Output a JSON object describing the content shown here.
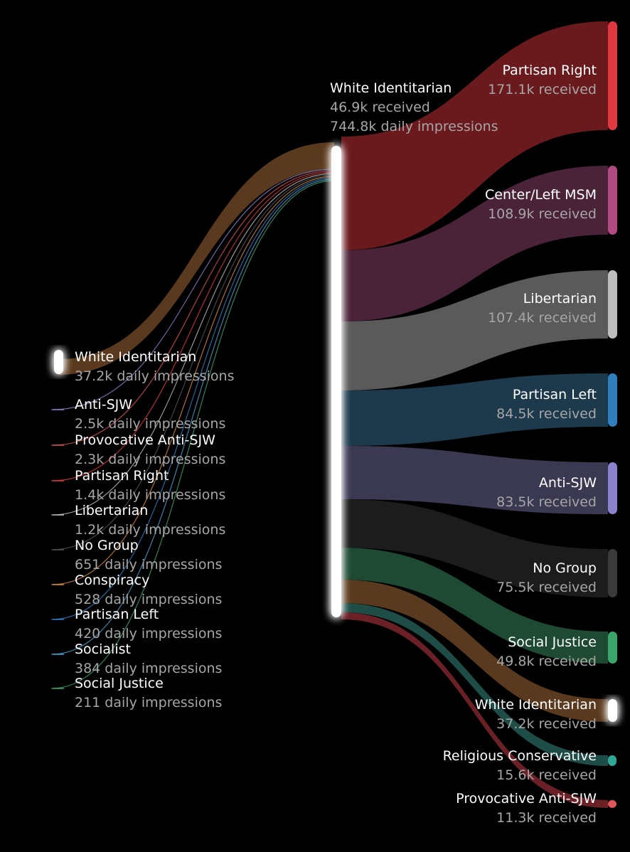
{
  "center": {
    "name": "White Identitarian",
    "received_value": "46.9k",
    "received_suffix": "received",
    "impressions_value": "744.8k",
    "impressions_suffix": "daily impressions"
  },
  "sources": [
    {
      "name": "White Identitarian",
      "value": "37.2k",
      "suffix": "daily impressions",
      "color": "#ffffff"
    },
    {
      "name": "Anti-SJW",
      "value": "2.5k",
      "suffix": "daily impressions",
      "color": "#8a82cc"
    },
    {
      "name": "Provocative Anti-SJW",
      "value": "2.3k",
      "suffix": "daily impressions",
      "color": "#d9534f"
    },
    {
      "name": "Partisan Right",
      "value": "1.4k",
      "suffix": "daily impressions",
      "color": "#e0383f"
    },
    {
      "name": "Libertarian",
      "value": "1.2k",
      "suffix": "daily impressions",
      "color": "#bdbdbd"
    },
    {
      "name": "No Group",
      "value": "651",
      "suffix": "daily impressions",
      "color": "#555555"
    },
    {
      "name": "Conspiracy",
      "value": "528",
      "suffix": "daily impressions",
      "color": "#d98a3a"
    },
    {
      "name": "Partisan Left",
      "value": "420",
      "suffix": "daily impressions",
      "color": "#2f7fbf"
    },
    {
      "name": "Socialist",
      "value": "384",
      "suffix": "daily impressions",
      "color": "#4aa3d6"
    },
    {
      "name": "Social Justice",
      "value": "211",
      "suffix": "daily impressions",
      "color": "#3aa56b"
    }
  ],
  "targets": [
    {
      "name": "Partisan Right",
      "value": "171.1k",
      "suffix": "received",
      "color": "#e0383f",
      "flow": "#6a1a1d"
    },
    {
      "name": "Center/Left MSM",
      "value": "108.9k",
      "suffix": "received",
      "color": "#b04a80",
      "flow": "#4a2338"
    },
    {
      "name": "Libertarian",
      "value": "107.4k",
      "suffix": "received",
      "color": "#bdbdbd",
      "flow": "#5a5a5a"
    },
    {
      "name": "Partisan Left",
      "value": "84.5k",
      "suffix": "received",
      "color": "#2f7fbf",
      "flow": "#1d3a4d"
    },
    {
      "name": "Anti-SJW",
      "value": "83.5k",
      "suffix": "received",
      "color": "#8a82cc",
      "flow": "#3b3852"
    },
    {
      "name": "No Group",
      "value": "75.5k",
      "suffix": "received",
      "color": "#3a3a3a",
      "flow": "#1c1c1c"
    },
    {
      "name": "Social Justice",
      "value": "49.8k",
      "suffix": "received",
      "color": "#3aa56b",
      "flow": "#1e4a33"
    },
    {
      "name": "White Identitarian",
      "value": "37.2k",
      "suffix": "received",
      "color": "#ffffff",
      "flow": "#5a3a1e"
    },
    {
      "name": "Religious Conservative",
      "value": "15.6k",
      "suffix": "received",
      "color": "#2fa89a",
      "flow": "#1e4d48"
    },
    {
      "name": "Provocative Anti-SJW",
      "value": "11.3k",
      "suffix": "received",
      "color": "#e0545a",
      "flow": "#6a2025"
    }
  ]
}
